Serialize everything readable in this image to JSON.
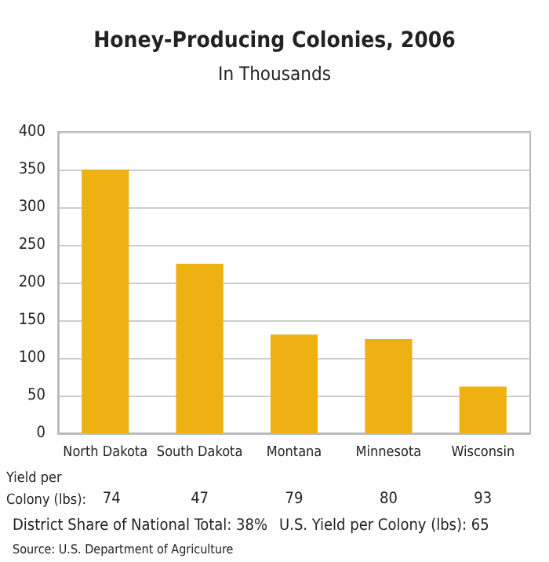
{
  "chart_data": {
    "type": "bar",
    "title": "Honey-Producing Colonies, 2006",
    "subtitle": "In Thousands",
    "categories": [
      "North Dakota",
      "South Dakota",
      "Montana",
      "Minnesota",
      "Wisconsin"
    ],
    "values": [
      350,
      225,
      131,
      125,
      62
    ],
    "color": "#eeb111",
    "ylim": [
      0,
      400
    ],
    "yticks": [
      0,
      50,
      100,
      150,
      200,
      250,
      300,
      350,
      400
    ],
    "grid": "y",
    "annotations": [
      "Yield per Colony (lbs):",
      "74",
      "47",
      "79",
      "80",
      "93",
      "District Share of National Total: 38%",
      "U.S. Yield per Colony (lbs): 65",
      "Source: U.S. Department of Agriculture"
    ]
  }
}
